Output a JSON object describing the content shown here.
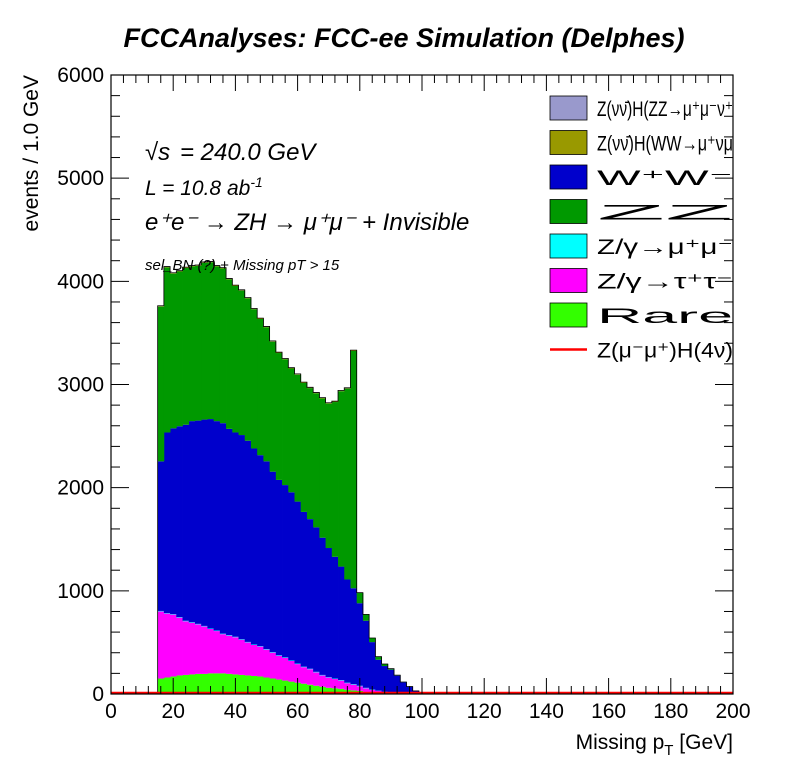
{
  "title": "FCCAnalyses: FCC-ee Simulation (Delphes)",
  "annotations": {
    "energy_sqrt": "√s",
    "energy_value": "= 240.0 GeV",
    "lumi_base": "L = 10.8 ab",
    "lumi_exp": "-1",
    "process": "e⁺e⁻ → ZH → μ⁺μ⁻ + Invisible",
    "selection": "sel_BN (?) + Missing pT > 15"
  },
  "colors": {
    "ZH_ZZ": "#9999cc",
    "ZH_WW": "#999900",
    "WW": "#0000cc",
    "ZZ": "#009900",
    "Zmumu": "#00ffff",
    "Ztautau": "#ff00ff",
    "Rare": "#33ff00",
    "signal": "#ff0000",
    "outline": "#000000"
  },
  "legend": [
    {
      "label": "Z(νν̄)H(ZZ→μ⁺μ⁻ν⁺",
      "key": "ZH_ZZ",
      "style": "box"
    },
    {
      "label": "Z(νν̄)H(WW→μ⁺νμ",
      "key": "ZH_WW",
      "style": "box"
    },
    {
      "label": "W⁺W⁻",
      "key": "WW",
      "style": "box"
    },
    {
      "label": "ZZ",
      "key": "ZZ",
      "style": "box"
    },
    {
      "label": "Z/γ→μ⁺μ⁻",
      "key": "Zmumu",
      "style": "box"
    },
    {
      "label": "Z/γ→τ⁺τ⁻",
      "key": "Ztautau",
      "style": "box"
    },
    {
      "label": "Rare",
      "key": "Rare",
      "style": "box"
    },
    {
      "label": "Z(μ⁻μ⁺)H(4ν)",
      "key": "signal",
      "style": "line"
    }
  ],
  "chart_data": {
    "type": "area",
    "subtype": "stacked-histogram",
    "xlabel": "Missing p_T [GeV]",
    "ylabel": "events / 1.0 GeV",
    "xlim": [
      0,
      200
    ],
    "ylim": [
      0,
      6000
    ],
    "x_ticks": [
      0,
      20,
      40,
      60,
      80,
      100,
      120,
      140,
      160,
      180,
      200
    ],
    "y_ticks": [
      0,
      1000,
      2000,
      3000,
      4000,
      5000,
      6000
    ],
    "bin_width": 1.0,
    "x_bins_start": [
      15,
      17,
      19,
      21,
      23,
      25,
      27,
      29,
      31,
      33,
      35,
      37,
      39,
      41,
      43,
      45,
      47,
      49,
      51,
      53,
      55,
      57,
      59,
      61,
      63,
      65,
      67,
      69,
      71,
      73,
      75,
      77,
      79,
      81,
      83,
      85,
      87,
      89,
      91,
      93,
      95,
      97,
      99,
      101,
      103,
      105
    ],
    "stack_order": [
      "Rare",
      "Ztautau",
      "Zmumu",
      "WW",
      "ZZ",
      "ZH_WW",
      "ZH_ZZ"
    ],
    "series": [
      {
        "name": "Rare",
        "key": "Rare",
        "values": [
          150,
          160,
          170,
          180,
          185,
          190,
          195,
          195,
          200,
          200,
          200,
          195,
          190,
          185,
          180,
          175,
          170,
          160,
          150,
          140,
          130,
          120,
          110,
          100,
          90,
          80,
          70,
          60,
          55,
          50,
          40,
          35,
          30,
          20,
          15,
          10,
          5,
          5,
          3,
          2,
          1,
          0,
          0,
          0,
          0,
          0
        ]
      },
      {
        "name": "Z/γ→τ⁺τ⁻",
        "key": "Ztautau",
        "values": [
          650,
          620,
          600,
          560,
          520,
          500,
          480,
          460,
          430,
          410,
          380,
          370,
          360,
          340,
          320,
          300,
          290,
          270,
          250,
          230,
          220,
          200,
          180,
          160,
          150,
          130,
          110,
          100,
          90,
          80,
          65,
          55,
          45,
          35,
          25,
          20,
          15,
          10,
          5,
          2,
          1,
          0,
          0,
          0,
          0,
          0
        ]
      },
      {
        "name": "Z/γ→μ⁺μ⁻",
        "key": "Zmumu",
        "values": [
          5,
          5,
          5,
          5,
          5,
          5,
          5,
          5,
          5,
          5,
          5,
          5,
          5,
          5,
          5,
          5,
          5,
          5,
          5,
          5,
          5,
          5,
          5,
          5,
          5,
          5,
          5,
          5,
          5,
          5,
          5,
          5,
          5,
          5,
          3,
          2,
          1,
          1,
          0,
          0,
          0,
          0,
          0,
          0,
          0,
          0
        ]
      },
      {
        "name": "W⁺W⁻",
        "key": "WW",
        "values": [
          1450,
          1750,
          1800,
          1850,
          1900,
          1950,
          1970,
          2000,
          2030,
          2030,
          2040,
          2000,
          1980,
          1980,
          1950,
          1900,
          1850,
          1820,
          1750,
          1700,
          1670,
          1630,
          1570,
          1500,
          1450,
          1400,
          1330,
          1250,
          1180,
          1100,
          1000,
          930,
          800,
          650,
          460,
          300,
          250,
          220,
          170,
          110,
          70,
          30,
          10,
          5,
          2,
          0
        ]
      },
      {
        "name": "ZZ",
        "key": "ZZ",
        "values": [
          1500,
          1600,
          1500,
          1500,
          1520,
          1500,
          1500,
          1520,
          1520,
          1500,
          1500,
          1450,
          1420,
          1400,
          1380,
          1350,
          1320,
          1300,
          1260,
          1230,
          1220,
          1200,
          1230,
          1250,
          1270,
          1300,
          1350,
          1400,
          1500,
          1700,
          1850,
          2300,
          100,
          60,
          40,
          30,
          20,
          10,
          5,
          2,
          1,
          0,
          0,
          0,
          0,
          0
        ]
      },
      {
        "name": "Z(νν̄)H(WW→μ⁺νμ",
        "key": "ZH_WW",
        "values": [
          5,
          5,
          5,
          5,
          5,
          5,
          5,
          5,
          5,
          5,
          5,
          5,
          5,
          5,
          5,
          5,
          5,
          5,
          5,
          5,
          5,
          5,
          5,
          5,
          5,
          5,
          5,
          5,
          5,
          5,
          5,
          5,
          2,
          1,
          0,
          0,
          0,
          0,
          0,
          0,
          0,
          0,
          0,
          0,
          0,
          0
        ]
      },
      {
        "name": "Z(νν̄)H(ZZ→μ⁺μ⁻ν⁺",
        "key": "ZH_ZZ",
        "values": [
          3,
          3,
          3,
          3,
          3,
          3,
          3,
          3,
          3,
          3,
          3,
          3,
          3,
          3,
          3,
          3,
          3,
          3,
          3,
          3,
          3,
          3,
          3,
          3,
          3,
          3,
          3,
          3,
          3,
          3,
          3,
          3,
          1,
          1,
          0,
          0,
          0,
          0,
          0,
          0,
          0,
          0,
          0,
          0,
          0,
          0
        ]
      }
    ],
    "signal": {
      "name": "Z(μ⁻μ⁺)H(4ν)",
      "key": "signal",
      "y": 10,
      "x_range": [
        0,
        200
      ]
    }
  }
}
